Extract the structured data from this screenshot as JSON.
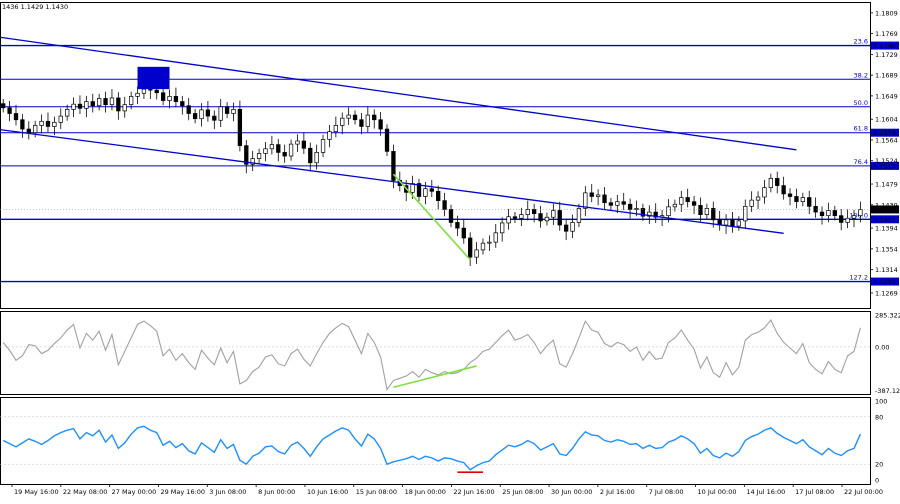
{
  "chart_data": {
    "type": "candlestick",
    "header": "1436 1.1429 1.1430",
    "price_panel": {
      "ylim": [
        1.124,
        1.183
      ],
      "y_ticks": [
        "1.1809",
        "1.1769",
        "1.1729",
        "1.1689",
        "1.1649",
        "1.1604",
        "1.1564",
        "1.1524",
        "1.1479",
        "1.1439",
        "1.1394",
        "1.1354",
        "1.1314",
        "1.1269"
      ],
      "current_price": {
        "label": "1.1430",
        "value": 1.143
      },
      "fib_levels": [
        {
          "name": "23.6",
          "value": 1.1746,
          "price_label": "1.1746",
          "color": "#0000cc"
        },
        {
          "name": "38.2",
          "value": 1.1681,
          "price_label": "",
          "color": "#0000cc"
        },
        {
          "name": "50.0",
          "value": 1.1628,
          "price_label": "",
          "color": "#0000cc"
        },
        {
          "name": "61.8",
          "value": 1.1578,
          "price_label": "1.1578",
          "color": "#0000cc"
        },
        {
          "name": "76.4",
          "value": 1.1514,
          "price_label": "1.1514",
          "color": "#0000cc"
        },
        {
          "name": "100.0",
          "value": 1.1411,
          "price_label": "1.1411",
          "color": "#0000cc"
        },
        {
          "name": "127.2",
          "value": 1.1291,
          "price_label": "1.1291",
          "color": "#0000cc"
        }
      ],
      "channel_lines": [
        {
          "from": {
            "x": 0,
            "y": 1.1762
          },
          "to": {
            "x": 124,
            "y": 1.1545
          },
          "color": "#0000cc"
        },
        {
          "from": {
            "x": 0,
            "y": 1.1584
          },
          "to": {
            "x": 122,
            "y": 1.1384
          },
          "color": "#0000cc"
        }
      ],
      "divergence_line": {
        "from": {
          "x": 61,
          "y": 1.1498
        },
        "to": {
          "x": 73,
          "y": 1.1333
        },
        "color": "#80e040"
      },
      "highlight_box": {
        "x0": 21,
        "x1": 26,
        "y0": 1.1662,
        "y1": 1.1705,
        "color": "#0000cc"
      },
      "close_series": [
        1.1626,
        1.1615,
        1.1603,
        1.1585,
        1.1578,
        1.1592,
        1.16,
        1.159,
        1.1598,
        1.161,
        1.1623,
        1.1633,
        1.1625,
        1.1638,
        1.163,
        1.1644,
        1.1632,
        1.1645,
        1.162,
        1.1632,
        1.1648,
        1.1654,
        1.1662,
        1.166,
        1.1655,
        1.164,
        1.1648,
        1.1638,
        1.163,
        1.1615,
        1.1605,
        1.1622,
        1.161,
        1.1602,
        1.1628,
        1.1615,
        1.1623,
        1.1553,
        1.1517,
        1.1528,
        1.1538,
        1.1547,
        1.1555,
        1.154,
        1.1533,
        1.1556,
        1.1562,
        1.1548,
        1.152,
        1.154,
        1.1565,
        1.158,
        1.1592,
        1.1606,
        1.1612,
        1.1603,
        1.159,
        1.1612,
        1.1603,
        1.1585,
        1.1542,
        1.1486,
        1.1476,
        1.1463,
        1.148,
        1.1455,
        1.147,
        1.1465,
        1.1447,
        1.143,
        1.1405,
        1.1394,
        1.1375,
        1.1338,
        1.1352,
        1.1365,
        1.1367,
        1.1385,
        1.1404,
        1.1416,
        1.1413,
        1.142,
        1.143,
        1.1422,
        1.1408,
        1.1415,
        1.1428,
        1.14,
        1.1388,
        1.1405,
        1.1432,
        1.1462,
        1.1455,
        1.1458,
        1.1443,
        1.1438,
        1.1445,
        1.144,
        1.143,
        1.1432,
        1.1417,
        1.1425,
        1.1415,
        1.1418,
        1.1435,
        1.144,
        1.1453,
        1.1445,
        1.1438,
        1.142,
        1.1432,
        1.141,
        1.14,
        1.141,
        1.1398,
        1.1408,
        1.1436,
        1.1448,
        1.1454,
        1.1472,
        1.149,
        1.1476,
        1.146,
        1.1455,
        1.1445,
        1.1453,
        1.1436,
        1.1425,
        1.1418,
        1.1428,
        1.1418,
        1.1405,
        1.1413,
        1.1418,
        1.143
      ]
    },
    "cci_panel": {
      "ylim": [
        -420,
        320
      ],
      "y_ticks": [
        {
          "value": 285.322,
          "label": "285.322"
        },
        {
          "value": 0,
          "label": "0.00"
        },
        {
          "value": -387.129,
          "label": "-387.129"
        }
      ],
      "divergence_line": {
        "from": {
          "x": 61,
          "y": -360
        },
        "to": {
          "x": 74,
          "y": -170
        },
        "color": "#80e040"
      },
      "color": "#a0a0a0",
      "values": [
        40,
        -30,
        -120,
        -80,
        20,
        10,
        -60,
        -30,
        30,
        80,
        150,
        200,
        -10,
        120,
        60,
        140,
        -30,
        110,
        -160,
        -40,
        80,
        200,
        230,
        190,
        140,
        -80,
        -20,
        -120,
        -60,
        -140,
        -200,
        -30,
        -100,
        -160,
        -10,
        -140,
        -40,
        -330,
        -300,
        -220,
        -180,
        -90,
        -70,
        -150,
        -170,
        -60,
        -20,
        -110,
        -170,
        -60,
        40,
        120,
        170,
        210,
        180,
        60,
        -60,
        120,
        40,
        -90,
        -380,
        -300,
        -280,
        -260,
        -220,
        -270,
        -200,
        -230,
        -250,
        -220,
        -240,
        -230,
        -200,
        -140,
        -100,
        -40,
        -20,
        40,
        100,
        150,
        60,
        80,
        110,
        40,
        -60,
        10,
        60,
        -150,
        -180,
        -60,
        80,
        230,
        150,
        130,
        30,
        0,
        40,
        20,
        -40,
        0,
        -120,
        -40,
        -110,
        -100,
        40,
        80,
        150,
        60,
        -20,
        -190,
        -90,
        -230,
        -270,
        -140,
        -250,
        -180,
        60,
        110,
        130,
        170,
        240,
        120,
        40,
        -10,
        -60,
        30,
        -140,
        -200,
        -240,
        -130,
        -200,
        -230,
        -80,
        -40,
        170
      ]
    },
    "rsi_panel": {
      "ylim": [
        0,
        100
      ],
      "y_ticks": [
        "100",
        "80",
        "20",
        "0"
      ],
      "red_marker": {
        "value": 20
      },
      "color": "#1e90ff",
      "values": [
        50,
        46,
        42,
        47,
        52,
        49,
        45,
        50,
        56,
        60,
        63,
        65,
        52,
        60,
        56,
        63,
        48,
        57,
        40,
        47,
        58,
        66,
        68,
        63,
        60,
        44,
        49,
        41,
        46,
        37,
        33,
        47,
        41,
        35,
        51,
        40,
        45,
        25,
        20,
        30,
        34,
        42,
        43,
        36,
        33,
        44,
        48,
        40,
        30,
        42,
        52,
        57,
        62,
        66,
        63,
        52,
        43,
        58,
        52,
        40,
        20,
        23,
        25,
        27,
        30,
        26,
        30,
        28,
        24,
        28,
        27,
        24,
        22,
        13,
        18,
        22,
        24,
        32,
        38,
        44,
        42,
        45,
        50,
        46,
        38,
        42,
        46,
        33,
        31,
        40,
        52,
        61,
        57,
        56,
        50,
        48,
        51,
        49,
        45,
        46,
        40,
        44,
        40,
        41,
        48,
        51,
        56,
        52,
        46,
        34,
        40,
        31,
        28,
        34,
        30,
        36,
        50,
        55,
        58,
        63,
        66,
        59,
        54,
        50,
        46,
        51,
        42,
        37,
        32,
        40,
        34,
        31,
        37,
        40,
        58
      ]
    },
    "x_labels": [
      "19 May 16:00",
      "22 May 08:00",
      "27 May 00:00",
      "29 May 16:00",
      "3 Jun 08:00",
      "8 Jun 00:00",
      "10 Jun 16:00",
      "15 Jun 08:00",
      "18 Jun 00:00",
      "22 Jun 16:00",
      "25 Jun 08:00",
      "30 Jun 00:00",
      "2 Jul 16:00",
      "7 Jul 08:00",
      "10 Jul 00:00",
      "14 Jul 16:00",
      "17 Jul 08:00",
      "22 Jul 00:00"
    ]
  }
}
